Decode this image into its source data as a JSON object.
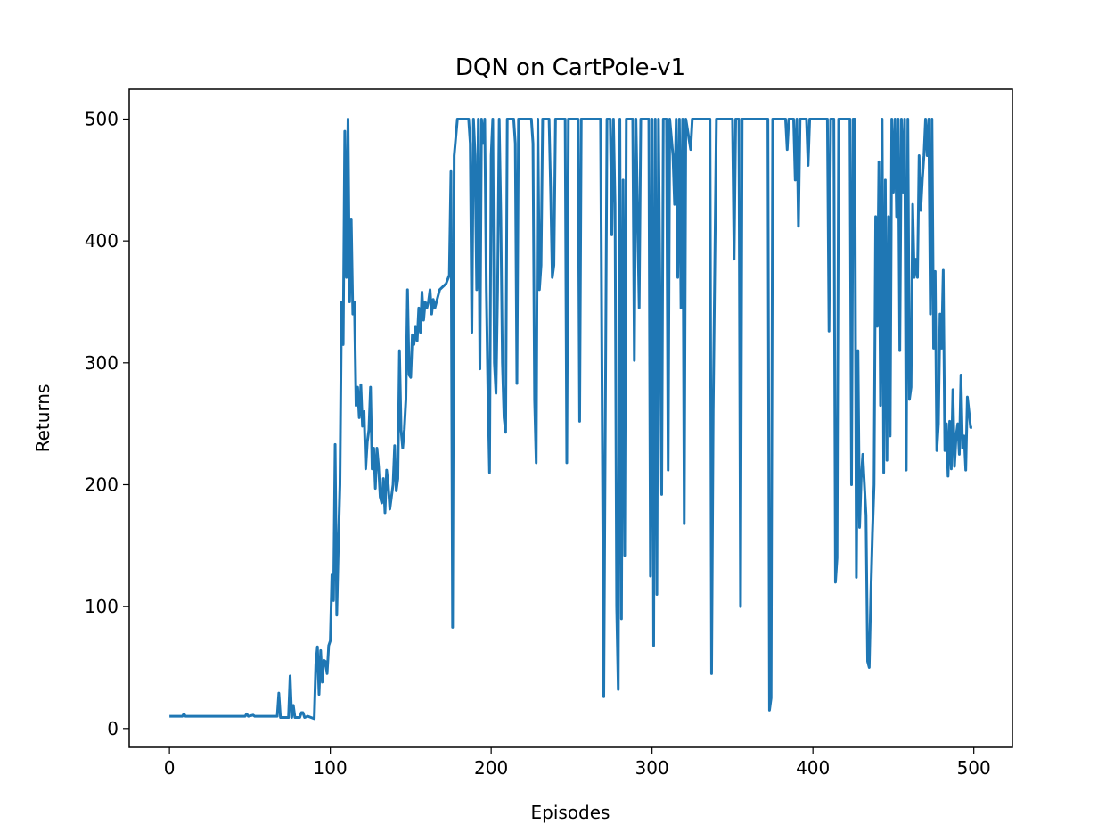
{
  "chart_data": {
    "type": "line",
    "title": "DQN on CartPole-v1",
    "xlabel": "Episodes",
    "ylabel": "Returns",
    "xlim": [
      -25,
      524
    ],
    "ylim": [
      -15.5,
      524.5
    ],
    "xticks": [
      0,
      100,
      200,
      300,
      400,
      500
    ],
    "yticks": [
      0,
      100,
      200,
      300,
      400,
      500
    ],
    "x": [
      0,
      8,
      9,
      10,
      47,
      48,
      49,
      52,
      53,
      67,
      68,
      69,
      72,
      74,
      75,
      76,
      77,
      78,
      81,
      82,
      83,
      84,
      86,
      88,
      90,
      91,
      92,
      93,
      94,
      95,
      96,
      97,
      98,
      99,
      100,
      101,
      102,
      103,
      104,
      105,
      106,
      107,
      108,
      109,
      110,
      111,
      112,
      113,
      114,
      115,
      116,
      117,
      118,
      119,
      120,
      121,
      122,
      123,
      124,
      125,
      126,
      127,
      128,
      129,
      130,
      131,
      132,
      133,
      134,
      135,
      136,
      137,
      138,
      139,
      140,
      141,
      142,
      143,
      144,
      145,
      146,
      147,
      148,
      149,
      150,
      151,
      152,
      153,
      154,
      155,
      156,
      157,
      158,
      159,
      160,
      161,
      162,
      163,
      164,
      165,
      166,
      167,
      168,
      172,
      174,
      175,
      176,
      177,
      179,
      186,
      187,
      188,
      189,
      190,
      191,
      192,
      193,
      194,
      195,
      196,
      197,
      198,
      199,
      200,
      201,
      202,
      203,
      204,
      205,
      206,
      207,
      208,
      209,
      210,
      214,
      215,
      216,
      217,
      225,
      226,
      227,
      228,
      229,
      230,
      231,
      232,
      236,
      237,
      238,
      239,
      240,
      246,
      247,
      248,
      254,
      255,
      256,
      268,
      270,
      272,
      274,
      275,
      276,
      277,
      278,
      279,
      280,
      281,
      282,
      283,
      284,
      288,
      289,
      290,
      292,
      293,
      298,
      299,
      300,
      301,
      302,
      303,
      304,
      306,
      307,
      309,
      310,
      311,
      313,
      314,
      315,
      316,
      317,
      318,
      319,
      320,
      321,
      324,
      325,
      336,
      337,
      338,
      340,
      350,
      351,
      352,
      354,
      355,
      356,
      372,
      373,
      374,
      375,
      383,
      384,
      385,
      388,
      389,
      390,
      391,
      392,
      396,
      397,
      398,
      409,
      410,
      411,
      413,
      414,
      415,
      416,
      422,
      423,
      424,
      425,
      426,
      427,
      428,
      429,
      430,
      431,
      432,
      433,
      434,
      435,
      436,
      437,
      438,
      439,
      440,
      441,
      442,
      443,
      444,
      445,
      446,
      447,
      448,
      449,
      450,
      451,
      452,
      453,
      454,
      455,
      456,
      457,
      458,
      459,
      460,
      461,
      462,
      463,
      464,
      465,
      466,
      467,
      468,
      469,
      470,
      471,
      472,
      473,
      474,
      475,
      476,
      477,
      478,
      479,
      480,
      481,
      482,
      483,
      484,
      485,
      486,
      487,
      488,
      489,
      490,
      491,
      492,
      493,
      494,
      495,
      496,
      497,
      498,
      499
    ],
    "series": [
      {
        "name": "Returns",
        "color": "#1f77b4",
        "values": [
          10,
          10,
          12,
          10,
          10,
          12,
          10,
          11,
          10,
          10,
          29,
          9,
          9,
          9,
          43,
          9,
          19,
          9,
          9,
          13,
          13,
          9,
          10,
          9,
          8,
          53,
          67,
          28,
          64,
          38,
          56,
          55,
          45,
          68,
          72,
          126,
          105,
          233,
          93,
          150,
          200,
          350,
          315,
          490,
          370,
          500,
          350,
          418,
          340,
          350,
          265,
          280,
          255,
          282,
          248,
          260,
          213,
          235,
          245,
          280,
          213,
          230,
          197,
          230,
          215,
          190,
          185,
          205,
          177,
          212,
          200,
          180,
          190,
          200,
          232,
          195,
          205,
          310,
          245,
          230,
          245,
          270,
          360,
          290,
          288,
          323,
          315,
          330,
          318,
          345,
          325,
          358,
          335,
          350,
          345,
          350,
          360,
          340,
          352,
          345,
          350,
          355,
          360,
          365,
          372,
          457,
          83,
          470,
          500,
          500,
          480,
          325,
          500,
          470,
          360,
          500,
          295,
          500,
          480,
          500,
          360,
          275,
          210,
          470,
          500,
          300,
          275,
          360,
          500,
          420,
          300,
          255,
          243,
          500,
          500,
          480,
          283,
          500,
          500,
          480,
          270,
          218,
          500,
          360,
          380,
          500,
          500,
          440,
          370,
          380,
          500,
          500,
          218,
          500,
          500,
          252,
          500,
          500,
          26,
          500,
          500,
          405,
          500,
          430,
          100,
          32,
          500,
          90,
          450,
          142,
          500,
          500,
          302,
          500,
          345,
          500,
          500,
          125,
          500,
          68,
          500,
          110,
          500,
          192,
          500,
          500,
          212,
          500,
          470,
          430,
          500,
          370,
          500,
          345,
          500,
          168,
          500,
          475,
          500,
          500,
          45,
          260,
          500,
          500,
          385,
          500,
          500,
          100,
          500,
          500,
          15,
          25,
          500,
          500,
          475,
          500,
          500,
          450,
          500,
          412,
          500,
          500,
          462,
          500,
          500,
          326,
          500,
          500,
          120,
          140,
          500,
          500,
          500,
          200,
          500,
          500,
          124,
          310,
          165,
          205,
          225,
          200,
          175,
          55,
          50,
          110,
          160,
          200,
          420,
          330,
          465,
          265,
          500,
          210,
          450,
          220,
          420,
          240,
          500,
          440,
          500,
          420,
          500,
          310,
          500,
          440,
          500,
          212,
          500,
          270,
          280,
          430,
          370,
          385,
          370,
          470,
          425,
          450,
          470,
          500,
          470,
          500,
          340,
          500,
          312,
          375,
          228,
          250,
          340,
          312,
          376,
          228,
          250,
          207,
          252,
          213,
          278,
          215,
          240,
          250,
          225,
          290,
          230,
          240,
          212,
          272,
          260,
          247,
          247
        ]
      }
    ]
  }
}
